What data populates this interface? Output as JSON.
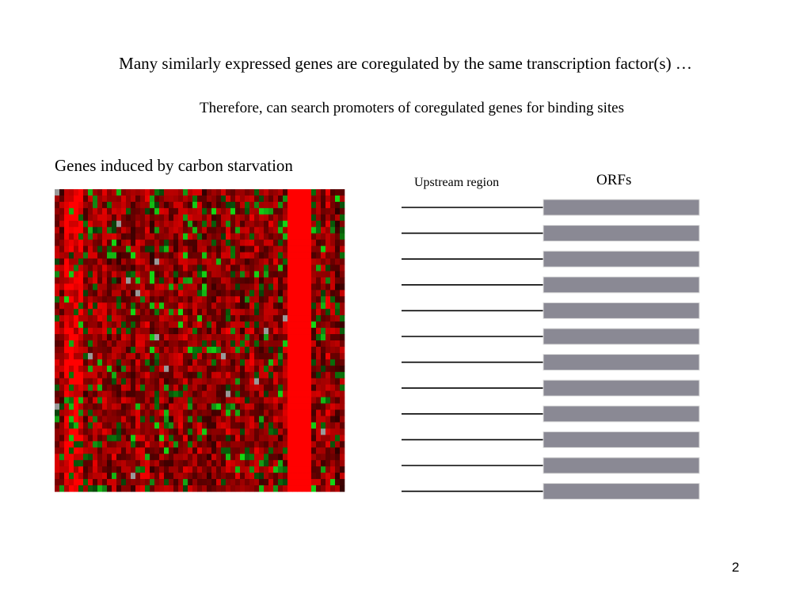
{
  "slide": {
    "title": "Many similarly expressed genes are coregulated by the same transcription factor(s) …",
    "subtitle": "Therefore, can search promoters of coregulated genes for binding sites",
    "heatmap_caption": "Genes induced by carbon starvation",
    "upstream_label": "Upstream region",
    "orf_label": "ORFs",
    "page_number": "2"
  }
}
